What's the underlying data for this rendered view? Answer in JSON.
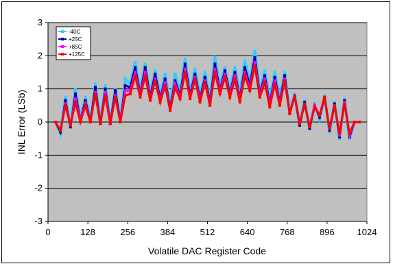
{
  "chart_data": {
    "type": "line",
    "title": "",
    "xlabel": "Volatile DAC Register Code",
    "ylabel": "INL Error (LSb)",
    "xlim": [
      0,
      1024
    ],
    "ylim": [
      -3,
      3
    ],
    "xticks": [
      0,
      128,
      256,
      384,
      512,
      640,
      768,
      896,
      1024
    ],
    "yticks": [
      -3,
      -2,
      -1,
      0,
      1,
      2,
      3
    ],
    "grid": "horizontal",
    "legend_position": "top-left",
    "plot_background": "#c0c0c0",
    "x": [
      24,
      40,
      56,
      72,
      88,
      104,
      120,
      136,
      152,
      168,
      184,
      200,
      216,
      232,
      248,
      264,
      280,
      296,
      312,
      328,
      344,
      360,
      376,
      392,
      408,
      424,
      440,
      456,
      472,
      488,
      504,
      520,
      536,
      552,
      568,
      584,
      600,
      616,
      632,
      648,
      664,
      680,
      696,
      712,
      728,
      744,
      760,
      776,
      792,
      808,
      824,
      840,
      856,
      872,
      888,
      904,
      920,
      936,
      952,
      968,
      984,
      1000
    ],
    "series": [
      {
        "name": "-40C",
        "color": "#33ccff",
        "values": [
          0.0,
          -0.35,
          0.75,
          -0.15,
          1.0,
          0.1,
          0.75,
          0.05,
          1.15,
          0.0,
          1.1,
          0.0,
          1.0,
          0.05,
          1.3,
          1.15,
          1.8,
          0.95,
          1.75,
          0.85,
          1.55,
          0.8,
          1.45,
          0.5,
          1.45,
          0.9,
          1.9,
          0.9,
          1.6,
          0.8,
          1.5,
          0.7,
          1.95,
          1.1,
          1.65,
          0.95,
          1.65,
          0.85,
          1.85,
          1.2,
          2.15,
          0.95,
          1.55,
          0.65,
          1.5,
          0.75,
          1.5,
          0.3,
          0.85,
          -0.1,
          0.65,
          -0.2,
          0.5,
          0.1,
          0.8,
          -0.3,
          0.6,
          -0.5,
          0.7,
          -0.5,
          0.0,
          0.0
        ]
      },
      {
        "name": "+25C",
        "color": "#000099",
        "values": [
          0.0,
          -0.3,
          0.65,
          -0.15,
          0.85,
          0.05,
          0.65,
          0.0,
          1.05,
          -0.05,
          1.0,
          -0.05,
          0.95,
          0.0,
          1.1,
          1.05,
          1.65,
          0.85,
          1.65,
          0.75,
          1.45,
          0.7,
          1.3,
          0.4,
          1.25,
          0.8,
          1.75,
          0.8,
          1.45,
          0.7,
          1.35,
          0.6,
          1.75,
          0.95,
          1.55,
          0.85,
          1.5,
          0.7,
          1.65,
          1.1,
          1.95,
          0.85,
          1.4,
          0.55,
          1.35,
          0.6,
          1.4,
          0.25,
          0.8,
          -0.1,
          0.6,
          -0.2,
          0.5,
          0.15,
          0.75,
          -0.25,
          0.55,
          -0.45,
          0.65,
          -0.45,
          0.0,
          0.0
        ]
      },
      {
        "name": "+85C",
        "color": "#ff00ff",
        "values": [
          0.0,
          -0.25,
          0.55,
          -0.1,
          0.7,
          0.05,
          0.55,
          0.0,
          0.9,
          -0.05,
          0.9,
          -0.05,
          0.8,
          0.0,
          0.95,
          0.95,
          1.5,
          0.8,
          1.5,
          0.7,
          1.3,
          0.65,
          1.2,
          0.35,
          1.15,
          0.75,
          1.6,
          0.75,
          1.35,
          0.65,
          1.25,
          0.55,
          1.6,
          0.9,
          1.45,
          0.8,
          1.4,
          0.65,
          1.5,
          1.0,
          1.8,
          0.8,
          1.3,
          0.5,
          1.25,
          0.55,
          1.3,
          0.25,
          0.8,
          -0.05,
          0.55,
          -0.15,
          0.5,
          0.2,
          0.75,
          -0.2,
          0.5,
          -0.4,
          0.6,
          -0.4,
          0.0,
          0.0
        ]
      },
      {
        "name": "+125C",
        "color": "#ff0000",
        "values": [
          0.0,
          -0.25,
          0.5,
          -0.1,
          0.6,
          0.0,
          0.5,
          0.0,
          0.85,
          -0.05,
          0.8,
          -0.05,
          0.75,
          0.0,
          0.8,
          0.85,
          1.4,
          0.75,
          1.4,
          0.65,
          1.25,
          0.6,
          1.1,
          0.35,
          1.05,
          0.7,
          1.5,
          0.7,
          1.3,
          0.6,
          1.2,
          0.5,
          1.5,
          0.85,
          1.35,
          0.75,
          1.3,
          0.6,
          1.4,
          0.95,
          1.7,
          0.75,
          1.2,
          0.45,
          1.15,
          0.5,
          1.25,
          0.25,
          0.8,
          -0.05,
          0.55,
          -0.15,
          0.45,
          0.2,
          0.75,
          -0.2,
          0.5,
          -0.35,
          0.55,
          -0.35,
          0.0,
          0.0
        ]
      }
    ]
  }
}
